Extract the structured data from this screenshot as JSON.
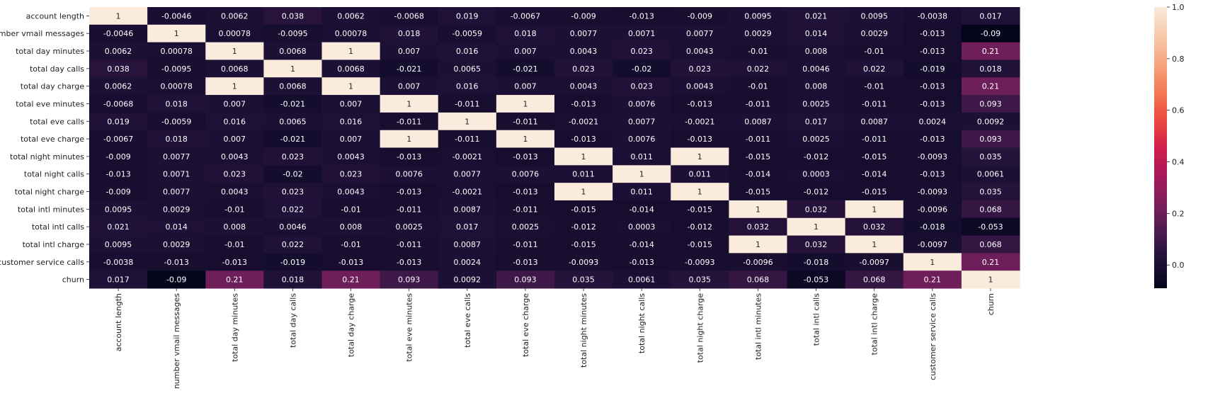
{
  "chart_data": {
    "type": "heatmap",
    "title": "",
    "xlabel": "",
    "ylabel": "",
    "colormap": "rocket",
    "colorbar": {
      "vmin": -0.09,
      "vmax": 1.0,
      "ticks": [
        0.0,
        0.2,
        0.4,
        0.6,
        0.8,
        1.0
      ],
      "tick_labels": [
        "0.0",
        "0.2",
        "0.4",
        "0.6",
        "0.8",
        "1.0"
      ]
    },
    "labels": [
      "account length",
      "number vmail messages",
      "total day minutes",
      "total day calls",
      "total day charge",
      "total eve minutes",
      "total eve calls",
      "total eve charge",
      "total night minutes",
      "total night calls",
      "total night charge",
      "total intl minutes",
      "total intl calls",
      "total intl charge",
      "customer service calls",
      "churn"
    ],
    "matrix": [
      [
        1,
        -0.0046,
        0.0062,
        0.038,
        0.0062,
        -0.0068,
        0.019,
        -0.0067,
        -0.009,
        -0.013,
        -0.009,
        0.0095,
        0.021,
        0.0095,
        -0.0038,
        0.017
      ],
      [
        -0.0046,
        1,
        0.00078,
        -0.0095,
        0.00078,
        0.018,
        -0.0059,
        0.018,
        0.0077,
        0.0071,
        0.0077,
        0.0029,
        0.014,
        0.0029,
        -0.013,
        -0.09
      ],
      [
        0.0062,
        0.00078,
        1,
        0.0068,
        1,
        0.007,
        0.016,
        0.007,
        0.0043,
        0.023,
        0.0043,
        -0.01,
        0.008,
        -0.01,
        -0.013,
        0.21
      ],
      [
        0.038,
        -0.0095,
        0.0068,
        1,
        0.0068,
        -0.021,
        0.0065,
        -0.021,
        0.023,
        -0.02,
        0.023,
        0.022,
        0.0046,
        0.022,
        -0.019,
        0.018
      ],
      [
        0.0062,
        0.00078,
        1,
        0.0068,
        1,
        0.007,
        0.016,
        0.007,
        0.0043,
        0.023,
        0.0043,
        -0.01,
        0.008,
        -0.01,
        -0.013,
        0.21
      ],
      [
        -0.0068,
        0.018,
        0.007,
        -0.021,
        0.007,
        1,
        -0.011,
        1,
        -0.013,
        0.0076,
        -0.013,
        -0.011,
        0.0025,
        -0.011,
        -0.013,
        0.093
      ],
      [
        0.019,
        -0.0059,
        0.016,
        0.0065,
        0.016,
        -0.011,
        1,
        -0.011,
        -0.0021,
        0.0077,
        -0.0021,
        0.0087,
        0.017,
        0.0087,
        0.0024,
        0.0092
      ],
      [
        -0.0067,
        0.018,
        0.007,
        -0.021,
        0.007,
        1,
        -0.011,
        1,
        -0.013,
        0.0076,
        -0.013,
        -0.011,
        0.0025,
        -0.011,
        -0.013,
        0.093
      ],
      [
        -0.009,
        0.0077,
        0.0043,
        0.023,
        0.0043,
        -0.013,
        -0.0021,
        -0.013,
        1,
        0.011,
        1,
        -0.015,
        -0.012,
        -0.015,
        -0.0093,
        0.035
      ],
      [
        -0.013,
        0.0071,
        0.023,
        -0.02,
        0.023,
        0.0076,
        0.0077,
        0.0076,
        0.011,
        1,
        0.011,
        -0.014,
        0.0003,
        -0.014,
        -0.013,
        0.0061
      ],
      [
        -0.009,
        0.0077,
        0.0043,
        0.023,
        0.0043,
        -0.013,
        -0.0021,
        -0.013,
        1,
        0.011,
        1,
        -0.015,
        -0.012,
        -0.015,
        -0.0093,
        0.035
      ],
      [
        0.0095,
        0.0029,
        -0.01,
        0.022,
        -0.01,
        -0.011,
        0.0087,
        -0.011,
        -0.015,
        -0.014,
        -0.015,
        1,
        0.032,
        1,
        -0.0096,
        0.068
      ],
      [
        0.021,
        0.014,
        0.008,
        0.0046,
        0.008,
        0.0025,
        0.017,
        0.0025,
        -0.012,
        0.0003,
        -0.012,
        0.032,
        1,
        0.032,
        -0.018,
        -0.053
      ],
      [
        0.0095,
        0.0029,
        -0.01,
        0.022,
        -0.01,
        -0.011,
        0.0087,
        -0.011,
        -0.015,
        -0.014,
        -0.015,
        1,
        0.032,
        1,
        -0.0097,
        0.068
      ],
      [
        -0.0038,
        -0.013,
        -0.013,
        -0.019,
        -0.013,
        -0.013,
        0.0024,
        -0.013,
        -0.0093,
        -0.013,
        -0.0093,
        -0.0096,
        -0.018,
        -0.0097,
        1,
        0.21
      ],
      [
        0.017,
        -0.09,
        0.21,
        0.018,
        0.21,
        0.093,
        0.0092,
        0.093,
        0.035,
        0.0061,
        0.035,
        0.068,
        -0.053,
        0.068,
        0.21,
        1
      ]
    ]
  }
}
